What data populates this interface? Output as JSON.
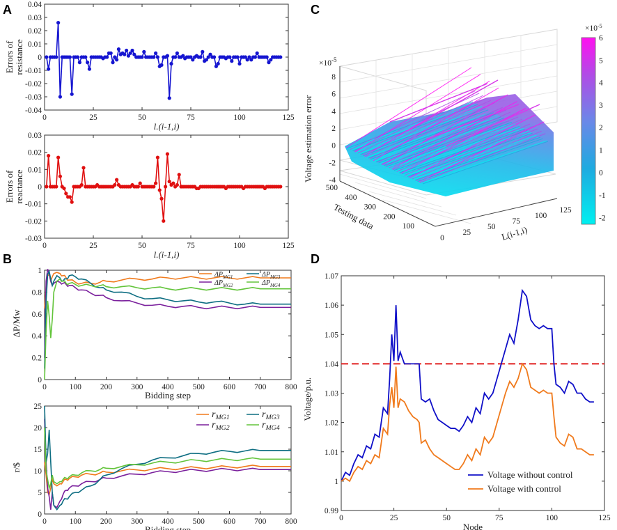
{
  "panels": {
    "A": "A",
    "B": "B",
    "C": "C",
    "D": "D"
  },
  "chart_data": [
    {
      "id": "A1",
      "type": "line",
      "color": "#1515d0",
      "ylabel_lines": [
        "Errors of",
        "resistance"
      ],
      "xlabel": "l.(i-1,i)",
      "xlim": [
        0,
        125
      ],
      "ylim": [
        -0.04,
        0.04
      ],
      "xticks": [
        0,
        25,
        50,
        75,
        100,
        125
      ],
      "yticks": [
        -0.04,
        -0.03,
        -0.02,
        -0.01,
        0,
        0.01,
        0.02,
        0.03,
        0.04
      ],
      "ytick_labels": [
        "-0.04",
        "-0.03",
        "-0.02",
        "-0.01",
        "0",
        "0.01",
        "0.02",
        "0.03",
        "0.04"
      ],
      "x": [
        1,
        2,
        3,
        4,
        5,
        6,
        7,
        8,
        9,
        10,
        11,
        12,
        13,
        14,
        15,
        16,
        17,
        18,
        19,
        20,
        21,
        22,
        23,
        24,
        25,
        26,
        27,
        28,
        29,
        30,
        31,
        32,
        33,
        34,
        35,
        36,
        37,
        38,
        39,
        40,
        41,
        42,
        43,
        44,
        45,
        46,
        47,
        48,
        49,
        50,
        51,
        52,
        53,
        54,
        55,
        56,
        57,
        58,
        59,
        60,
        61,
        62,
        63,
        64,
        65,
        66,
        67,
        68,
        69,
        70,
        71,
        72,
        73,
        74,
        75,
        76,
        77,
        78,
        79,
        80,
        81,
        82,
        83,
        84,
        85,
        86,
        87,
        88,
        89,
        90,
        91,
        92,
        93,
        94,
        95,
        96,
        97,
        98,
        99,
        100,
        101,
        102,
        103,
        104,
        105,
        106,
        107,
        108,
        109,
        110,
        111,
        112,
        113,
        114,
        115,
        116,
        117,
        118,
        119,
        120,
        121
      ],
      "values": [
        0,
        -0.009,
        0,
        0,
        0,
        0,
        0.026,
        -0.03,
        0,
        0,
        0,
        0,
        0,
        -0.028,
        0,
        0,
        0,
        -0.004,
        0,
        0,
        0,
        -0.004,
        -0.009,
        0,
        0,
        0,
        0,
        0,
        0,
        -0.001,
        0,
        0,
        0.003,
        0.003,
        -0.004,
        0,
        -0.002,
        0.006,
        0.002,
        0.003,
        0.002,
        0.005,
        0.001,
        0.003,
        0.005,
        0.002,
        0,
        0,
        0,
        0,
        0.004,
        0,
        0,
        0,
        0,
        0,
        0.003,
        0,
        -0.007,
        -0.006,
        0,
        0,
        0.001,
        -0.031,
        -0.005,
        0,
        0,
        0.003,
        0,
        0,
        0.001,
        -0.001,
        0,
        0,
        0,
        -0.002,
        0,
        0.001,
        0,
        0,
        0.004,
        -0.003,
        -0.002,
        0,
        0.002,
        0,
        0,
        -0.007,
        -0.005,
        0,
        0,
        0,
        -0.001,
        0,
        0,
        -0.003,
        0,
        0,
        0,
        -0.005,
        0,
        0,
        0,
        -0.002,
        0,
        -0.002,
        0,
        0,
        0.003,
        0,
        0,
        0,
        0,
        0,
        -0.004,
        -0.002,
        0,
        0,
        0,
        0,
        0
      ]
    },
    {
      "id": "A2",
      "type": "line",
      "color": "#e01010",
      "ylabel_lines": [
        "Errors of",
        "reactance"
      ],
      "xlabel": "l.(i-1,i)",
      "xlim": [
        0,
        125
      ],
      "ylim": [
        -0.03,
        0.03
      ],
      "xticks": [
        0,
        25,
        50,
        75,
        100,
        125
      ],
      "yticks": [
        -0.03,
        -0.02,
        -0.01,
        0,
        0.01,
        0.02,
        0.03
      ],
      "ytick_labels": [
        "-0.03",
        "-0.02",
        "-0.01",
        "0",
        "0.01",
        "0.02",
        "0.03"
      ],
      "x": [
        1,
        2,
        3,
        4,
        5,
        6,
        7,
        8,
        9,
        10,
        11,
        12,
        13,
        14,
        15,
        16,
        17,
        18,
        19,
        20,
        21,
        22,
        23,
        24,
        25,
        26,
        27,
        28,
        29,
        30,
        31,
        32,
        33,
        34,
        35,
        36,
        37,
        38,
        39,
        40,
        41,
        42,
        43,
        44,
        45,
        46,
        47,
        48,
        49,
        50,
        51,
        52,
        53,
        54,
        55,
        56,
        57,
        58,
        59,
        60,
        61,
        62,
        63,
        64,
        65,
        66,
        67,
        68,
        69,
        70,
        71,
        72,
        73,
        74,
        75,
        76,
        77,
        78,
        79,
        80,
        81,
        82,
        83,
        84,
        85,
        86,
        87,
        88,
        89,
        90,
        91,
        92,
        93,
        94,
        95,
        96,
        97,
        98,
        99,
        100,
        101,
        102,
        103,
        104,
        105,
        106,
        107,
        108,
        109,
        110,
        111,
        112,
        113,
        114,
        115,
        116,
        117,
        118,
        119,
        120,
        121
      ],
      "values": [
        0,
        0.018,
        0,
        0,
        0,
        0,
        0.017,
        0.006,
        0,
        -0.001,
        -0.004,
        -0.006,
        -0.006,
        -0.009,
        0,
        0,
        0,
        0,
        0.001,
        0.011,
        0,
        0,
        0,
        0,
        0,
        0,
        0.001,
        0,
        0,
        0,
        0,
        0,
        0,
        0,
        0,
        0.001,
        0.004,
        0.001,
        0,
        0,
        0,
        0,
        0,
        0,
        0.001,
        0,
        0,
        0,
        0.002,
        0,
        0,
        0,
        0,
        0,
        0,
        0,
        0.002,
        0.017,
        -0.002,
        -0.007,
        -0.02,
        0,
        0.019,
        0.003,
        0.001,
        0.002,
        0,
        0.001,
        0.007,
        0,
        0,
        0,
        0,
        0,
        0,
        0,
        0,
        -0.001,
        -0.001,
        0,
        0,
        0,
        0,
        0,
        0,
        0,
        0,
        0,
        0,
        0,
        0,
        0,
        -0.001,
        0,
        0,
        0,
        0,
        0,
        0,
        0,
        0,
        -0.001,
        0,
        0,
        0,
        0,
        0,
        0,
        0,
        0,
        0,
        0,
        -0.001,
        0,
        0,
        0,
        0,
        0,
        0,
        0,
        0
      ]
    },
    {
      "id": "B1",
      "type": "line",
      "ylabel": "ΔP/Mw",
      "xlabel": "Bidding step",
      "xlim": [
        0,
        800
      ],
      "ylim": [
        0,
        1
      ],
      "xticks": [
        0,
        100,
        200,
        300,
        400,
        500,
        600,
        700,
        800
      ],
      "yticks": [
        0,
        0.2,
        0.4,
        0.6,
        0.8,
        1
      ],
      "ytick_labels": [
        "0",
        "0.2",
        "0.4",
        "0.6",
        "0.8",
        "1"
      ],
      "x": [
        0,
        5,
        10,
        15,
        20,
        25,
        30,
        40,
        50,
        60,
        70,
        80,
        100,
        120,
        150,
        180,
        200,
        250,
        300,
        350,
        400,
        450,
        500,
        550,
        600,
        650,
        700,
        750,
        800
      ],
      "series": [
        {
          "name": "MG1",
          "label_sub": "MG1",
          "color": "#f07a1c",
          "values": [
            0.65,
            0.85,
            0.95,
            0.96,
            0.9,
            0.94,
            0.97,
            0.98,
            0.97,
            0.95,
            0.93,
            0.91,
            0.89,
            0.88,
            0.88,
            0.89,
            0.9,
            0.91,
            0.92,
            0.92,
            0.93,
            0.93,
            0.93,
            0.93,
            0.93,
            0.93,
            0.93,
            0.93,
            0.93
          ]
        },
        {
          "name": "MG2",
          "label_sub": "MG2",
          "color": "#7a1f9c",
          "values": [
            0.2,
            0.9,
            1.01,
            0.97,
            0.9,
            0.86,
            0.88,
            0.9,
            0.89,
            0.88,
            0.87,
            0.86,
            0.84,
            0.82,
            0.79,
            0.77,
            0.75,
            0.72,
            0.7,
            0.68,
            0.67,
            0.67,
            0.66,
            0.66,
            0.66,
            0.66,
            0.66,
            0.66,
            0.66
          ]
        },
        {
          "name": "MG3",
          "label_sub": "MG3",
          "color": "#0e6e82",
          "values": [
            0.1,
            0.72,
            0.96,
            0.99,
            0.92,
            0.86,
            0.9,
            0.95,
            0.93,
            0.9,
            0.92,
            0.95,
            0.94,
            0.92,
            0.88,
            0.84,
            0.82,
            0.8,
            0.76,
            0.74,
            0.73,
            0.72,
            0.71,
            0.71,
            0.7,
            0.69,
            0.69,
            0.69,
            0.69
          ]
        },
        {
          "name": "MG4",
          "label_sub": "MG4",
          "color": "#62c43a",
          "values": [
            0.0,
            0.45,
            0.72,
            0.58,
            0.38,
            0.55,
            0.8,
            0.9,
            0.92,
            0.9,
            0.88,
            0.88,
            0.87,
            0.86,
            0.86,
            0.86,
            0.85,
            0.85,
            0.84,
            0.84,
            0.83,
            0.83,
            0.83,
            0.83,
            0.83,
            0.83,
            0.83,
            0.83,
            0.83
          ]
        }
      ],
      "legend_prefix": "ΔP"
    },
    {
      "id": "B2",
      "type": "line",
      "ylabel": "r/$",
      "xlabel": "Bidding step",
      "xlim": [
        0,
        800
      ],
      "ylim": [
        0,
        25
      ],
      "xticks": [
        0,
        100,
        200,
        300,
        400,
        500,
        600,
        700,
        800
      ],
      "yticks": [
        0,
        5,
        10,
        15,
        20,
        25
      ],
      "ytick_labels": [
        "0",
        "5",
        "10",
        "15",
        "20",
        "25"
      ],
      "x": [
        0,
        5,
        10,
        15,
        20,
        25,
        30,
        40,
        50,
        60,
        70,
        80,
        100,
        120,
        150,
        180,
        200,
        250,
        300,
        350,
        400,
        450,
        500,
        550,
        600,
        650,
        700,
        750,
        800
      ],
      "series": [
        {
          "name": "MG1",
          "label_sub": "MG1",
          "color": "#f07a1c",
          "values": [
            12,
            9,
            5,
            4.5,
            6,
            8,
            7,
            6.5,
            7,
            7.5,
            8,
            8.2,
            8.6,
            9,
            9.2,
            9.5,
            9.7,
            10,
            10.2,
            10.4,
            10.5,
            10.6,
            10.7,
            10.8,
            10.9,
            11,
            11,
            11,
            11
          ]
        },
        {
          "name": "MG2",
          "label_sub": "MG2",
          "color": "#7a1f9c",
          "values": [
            22,
            12,
            6,
            4,
            1,
            5,
            2,
            1.5,
            3,
            4.5,
            5.5,
            6,
            6.5,
            7,
            7.5,
            8,
            8.3,
            8.8,
            9.2,
            9.6,
            9.8,
            10,
            10.1,
            10.2,
            10.3,
            10.3,
            10.3,
            10.3,
            10.3
          ]
        },
        {
          "name": "MG3",
          "label_sub": "MG3",
          "color": "#0e6e82",
          "values": [
            25,
            12,
            14,
            19.5,
            12,
            5,
            2,
            1,
            2,
            3,
            3.5,
            4,
            5,
            5.5,
            6.5,
            8,
            9,
            10.5,
            11.5,
            12.5,
            13,
            13.5,
            14,
            14.3,
            14.5,
            14.6,
            14.7,
            14.7,
            14.7
          ]
        },
        {
          "name": "MG4",
          "label_sub": "MG4",
          "color": "#62c43a",
          "values": [
            20,
            10,
            8,
            6,
            7,
            9,
            7.5,
            7,
            7.5,
            8,
            8.3,
            8.6,
            9,
            9.5,
            10,
            10.3,
            10.6,
            11,
            11.4,
            11.8,
            12,
            12.2,
            12.4,
            12.5,
            12.6,
            12.7,
            12.7,
            12.7,
            12.7
          ]
        }
      ],
      "legend_prefix": "r"
    },
    {
      "id": "C",
      "type": "surface3d",
      "zlabel": "Voltage estimation error",
      "ylabel": "Testing data",
      "xlabel": "L(i-1,i)",
      "zexp": "×10",
      "zexp_sup": "-5",
      "cexp": "×10",
      "cexp_sup": "-5",
      "xticks": [
        0,
        25,
        50,
        75,
        100,
        125
      ],
      "yticks": [
        100,
        200,
        300,
        400,
        500
      ],
      "zticks": [
        -4,
        -2,
        0,
        2,
        4,
        6,
        8
      ],
      "colorbar_ticks": [
        6,
        5,
        4,
        3,
        2,
        1,
        0,
        -1,
        -2
      ],
      "colorbar_range": [
        -2.3,
        6
      ],
      "colormap": [
        "#00f0f0",
        "#1eaae0",
        "#6a88e8",
        "#b04ce6",
        "#ff10f0"
      ]
    },
    {
      "id": "D",
      "type": "line",
      "ylabel": "Voltage/p.u.",
      "xlabel": "Node",
      "xlim": [
        0,
        125
      ],
      "ylim": [
        0.99,
        1.07
      ],
      "xticks": [
        0,
        25,
        50,
        75,
        100,
        125
      ],
      "yticks": [
        0.99,
        1,
        1.01,
        1.02,
        1.03,
        1.04,
        1.05,
        1.06,
        1.07
      ],
      "ytick_labels": [
        "0.99",
        "1",
        "1.01",
        "1.02",
        "1.03",
        "1.04",
        "1.05",
        "1.06",
        "1.07"
      ],
      "reference_line": 1.04,
      "x": [
        0,
        2,
        4,
        6,
        8,
        10,
        12,
        14,
        16,
        18,
        20,
        22,
        23,
        24,
        25,
        26,
        27,
        28,
        30,
        32,
        34,
        36,
        37,
        38,
        40,
        42,
        44,
        46,
        48,
        50,
        52,
        54,
        56,
        58,
        60,
        62,
        64,
        66,
        68,
        70,
        72,
        74,
        76,
        78,
        80,
        82,
        84,
        86,
        88,
        90,
        92,
        94,
        96,
        98,
        100,
        101,
        102,
        104,
        106,
        108,
        110,
        112,
        114,
        116,
        118,
        120
      ],
      "series": [
        {
          "name": "Voltage without control",
          "color": "#1010c8",
          "values": [
            1.0,
            1.003,
            1.002,
            1.006,
            1.009,
            1.008,
            1.012,
            1.011,
            1.016,
            1.015,
            1.025,
            1.023,
            1.035,
            1.05,
            1.041,
            1.06,
            1.041,
            1.044,
            1.04,
            1.04,
            1.04,
            1.04,
            1.04,
            1.028,
            1.027,
            1.028,
            1.024,
            1.021,
            1.02,
            1.019,
            1.018,
            1.018,
            1.017,
            1.019,
            1.022,
            1.02,
            1.025,
            1.023,
            1.03,
            1.028,
            1.03,
            1.035,
            1.04,
            1.045,
            1.05,
            1.047,
            1.055,
            1.065,
            1.063,
            1.055,
            1.053,
            1.052,
            1.053,
            1.052,
            1.052,
            1.04,
            1.033,
            1.032,
            1.03,
            1.034,
            1.033,
            1.03,
            1.03,
            1.028,
            1.027,
            1.027
          ]
        },
        {
          "name": "Voltage with control",
          "color": "#f07a1c",
          "values": [
            1.0,
            1.001,
            1.0,
            1.003,
            1.005,
            1.004,
            1.007,
            1.006,
            1.009,
            1.008,
            1.018,
            1.016,
            1.026,
            1.032,
            1.025,
            1.039,
            1.025,
            1.028,
            1.027,
            1.024,
            1.022,
            1.021,
            1.02,
            1.013,
            1.014,
            1.011,
            1.009,
            1.008,
            1.007,
            1.006,
            1.005,
            1.004,
            1.004,
            1.006,
            1.009,
            1.007,
            1.011,
            1.009,
            1.015,
            1.013,
            1.015,
            1.02,
            1.025,
            1.03,
            1.034,
            1.032,
            1.035,
            1.04,
            1.038,
            1.032,
            1.031,
            1.03,
            1.031,
            1.03,
            1.03,
            1.022,
            1.015,
            1.013,
            1.012,
            1.016,
            1.015,
            1.011,
            1.011,
            1.01,
            1.009,
            1.009
          ]
        }
      ]
    }
  ]
}
